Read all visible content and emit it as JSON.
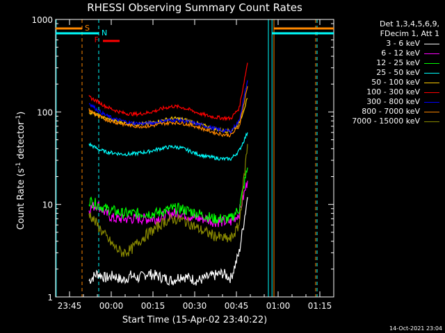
{
  "chart_data": {
    "type": "line",
    "title": "RHESSI Observing Summary Count Rates",
    "xlabel": "Start Time (15-Apr-02 23:40:22)",
    "ylabel": "Count Rate (s",
    "ylabel_sup1": "-1",
    "ylabel_mid": " detector",
    "ylabel_sup2": "-1",
    "ylabel_end": ")",
    "yscale": "log",
    "ylim": [
      1,
      1000
    ],
    "xlim_minutes": [
      -3.5,
      62.5
    ],
    "x_ticks": [
      {
        "m": 0,
        "label": "23:45"
      },
      {
        "m": 15,
        "label": "00:00"
      },
      {
        "m": 30,
        "label": "00:15"
      },
      {
        "m": 45,
        "label": "00:30"
      },
      {
        "m": 60,
        "label": "00:45"
      },
      {
        "m": 75,
        "label": "01:00"
      },
      {
        "m": 90,
        "label": "01:15"
      }
    ],
    "y_ticks": [
      {
        "v": 1,
        "label": "1"
      },
      {
        "v": 10,
        "label": "10"
      },
      {
        "v": 100,
        "label": "100"
      },
      {
        "v": 1000,
        "label": "1000"
      }
    ],
    "legend_header": [
      "Det 1,3,4,5,6,9,",
      "FDecim 1, Att 1"
    ],
    "series": [
      {
        "name": "3 - 6 keV",
        "color": "#ffffff",
        "values": [
          1.5,
          1.8,
          1.6,
          1.7,
          1.5,
          1.7,
          1.6,
          1.8,
          1.7,
          1.6,
          1.5,
          1.7,
          1.6,
          1.5,
          1.6,
          1.7,
          1.8,
          1.6,
          3,
          12
        ]
      },
      {
        "name": "6 - 12 keV",
        "color": "#ff00ff",
        "values": [
          9,
          10,
          8,
          7,
          7,
          7,
          7,
          7,
          7,
          7.5,
          8,
          8,
          7.5,
          7,
          7,
          6.5,
          6.5,
          6.5,
          8,
          18
        ]
      },
      {
        "name": "12 - 25 keV",
        "color": "#00ff00",
        "values": [
          11,
          10,
          9,
          8.5,
          8,
          8,
          8,
          8,
          8,
          8.5,
          9,
          9,
          8.5,
          8,
          7.5,
          7,
          7,
          7,
          9,
          25
        ]
      },
      {
        "name": "25 - 50 keV",
        "color": "#00ffff",
        "values": [
          45,
          40,
          37,
          36,
          35,
          35,
          36,
          37,
          39,
          41,
          42,
          41,
          38,
          35,
          33,
          32,
          31,
          31,
          38,
          60
        ]
      },
      {
        "name": "50 - 100 keV",
        "color": "#ffcc00",
        "values": [
          100,
          92,
          85,
          80,
          77,
          74,
          74,
          75,
          78,
          82,
          85,
          84,
          80,
          75,
          70,
          66,
          63,
          62,
          75,
          140
        ]
      },
      {
        "name": "100 - 300 keV",
        "color": "#ff0000",
        "values": [
          145,
          130,
          115,
          105,
          98,
          95,
          95,
          98,
          103,
          110,
          115,
          113,
          106,
          98,
          92,
          88,
          86,
          85,
          110,
          340
        ]
      },
      {
        "name": "300 - 800 keV",
        "color": "#0000ff",
        "values": [
          125,
          105,
          92,
          84,
          80,
          76,
          75,
          75,
          77,
          80,
          82,
          81,
          78,
          74,
          70,
          66,
          63,
          62,
          80,
          220
        ]
      },
      {
        "name": "800 - 7000 keV",
        "color": "#ff8800",
        "values": [
          105,
          92,
          83,
          78,
          74,
          71,
          70,
          70,
          72,
          75,
          77,
          76,
          73,
          69,
          64,
          60,
          57,
          56,
          70,
          190
        ]
      },
      {
        "name": "7000 - 15000 keV",
        "color": "#888800",
        "values": [
          8,
          6,
          4.5,
          3.5,
          3,
          3.2,
          4,
          4.8,
          5.5,
          6.5,
          7,
          6.8,
          6.3,
          5.5,
          5,
          4.6,
          4.3,
          4.2,
          6,
          45
        ]
      }
    ],
    "x_minutes": [
      7,
      10,
      13,
      16,
      19,
      22,
      25,
      28,
      31,
      34,
      37,
      40,
      43,
      46,
      49,
      52,
      55,
      58,
      61,
      64
    ],
    "markers": [
      {
        "label": "S",
        "color": "#ff8800"
      },
      {
        "label": "N",
        "color": "#00ffff"
      },
      {
        "label": "F",
        "color": "#ff0000"
      }
    ]
  },
  "footer_date": "14-Oct-2021 23:04"
}
